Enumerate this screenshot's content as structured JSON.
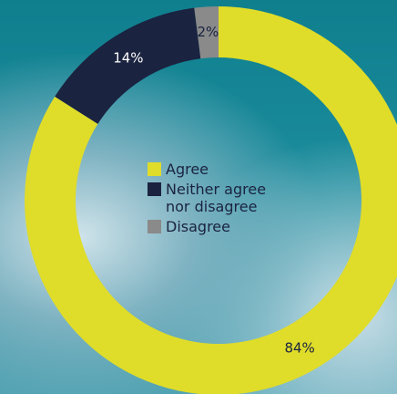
{
  "chart_data": {
    "type": "donut",
    "categories": [
      "Agree",
      "Neither agree nor disagree",
      "Disagree"
    ],
    "values": [
      84,
      14,
      2
    ],
    "value_labels": [
      "84%",
      "14%",
      "2%"
    ],
    "colors": [
      "#dfdc2a",
      "#1a2340",
      "#8a8a8a"
    ]
  }
}
